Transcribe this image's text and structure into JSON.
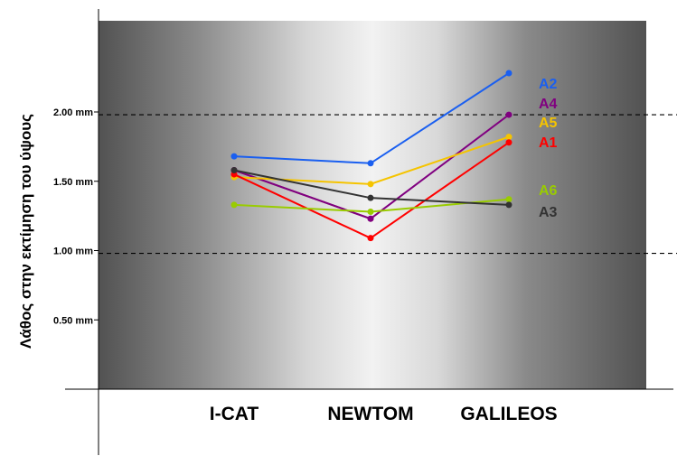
{
  "chart_data": {
    "type": "line",
    "title": "",
    "xlabel": "",
    "ylabel": "Λάθος στην εκτίμηση του ύψους",
    "categories": [
      "I-CAT",
      "NEWTOM",
      "GALILEOS"
    ],
    "ylim": [
      0,
      2.6
    ],
    "yticks": [
      {
        "value": 0.5,
        "label": "0.50 mm"
      },
      {
        "value": 1.0,
        "label": "1.00 mm"
      },
      {
        "value": 1.5,
        "label": "1.50 mm"
      },
      {
        "value": 2.0,
        "label": "2.00 mm"
      }
    ],
    "reference_lines": [
      0.98,
      1.98
    ],
    "grid": false,
    "legend": "inline at right end of lines",
    "series": [
      {
        "name": "A2",
        "color": "#1a5ff0",
        "values": [
          1.68,
          1.63,
          2.28
        ]
      },
      {
        "name": "A4",
        "color": "#800080",
        "values": [
          1.58,
          1.23,
          1.98
        ]
      },
      {
        "name": "A5",
        "color": "#f5c400",
        "values": [
          1.53,
          1.48,
          1.82
        ]
      },
      {
        "name": "A1",
        "color": "#ff0000",
        "values": [
          1.55,
          1.09,
          1.78
        ]
      },
      {
        "name": "A6",
        "color": "#99cc00",
        "values": [
          1.33,
          1.28,
          1.37
        ]
      },
      {
        "name": "A3",
        "color": "#333333",
        "values": [
          1.58,
          1.38,
          1.33
        ]
      }
    ],
    "extra_lines": [
      {
        "color": "#993366",
        "values": [
          1.58,
          1.23
        ]
      }
    ]
  }
}
